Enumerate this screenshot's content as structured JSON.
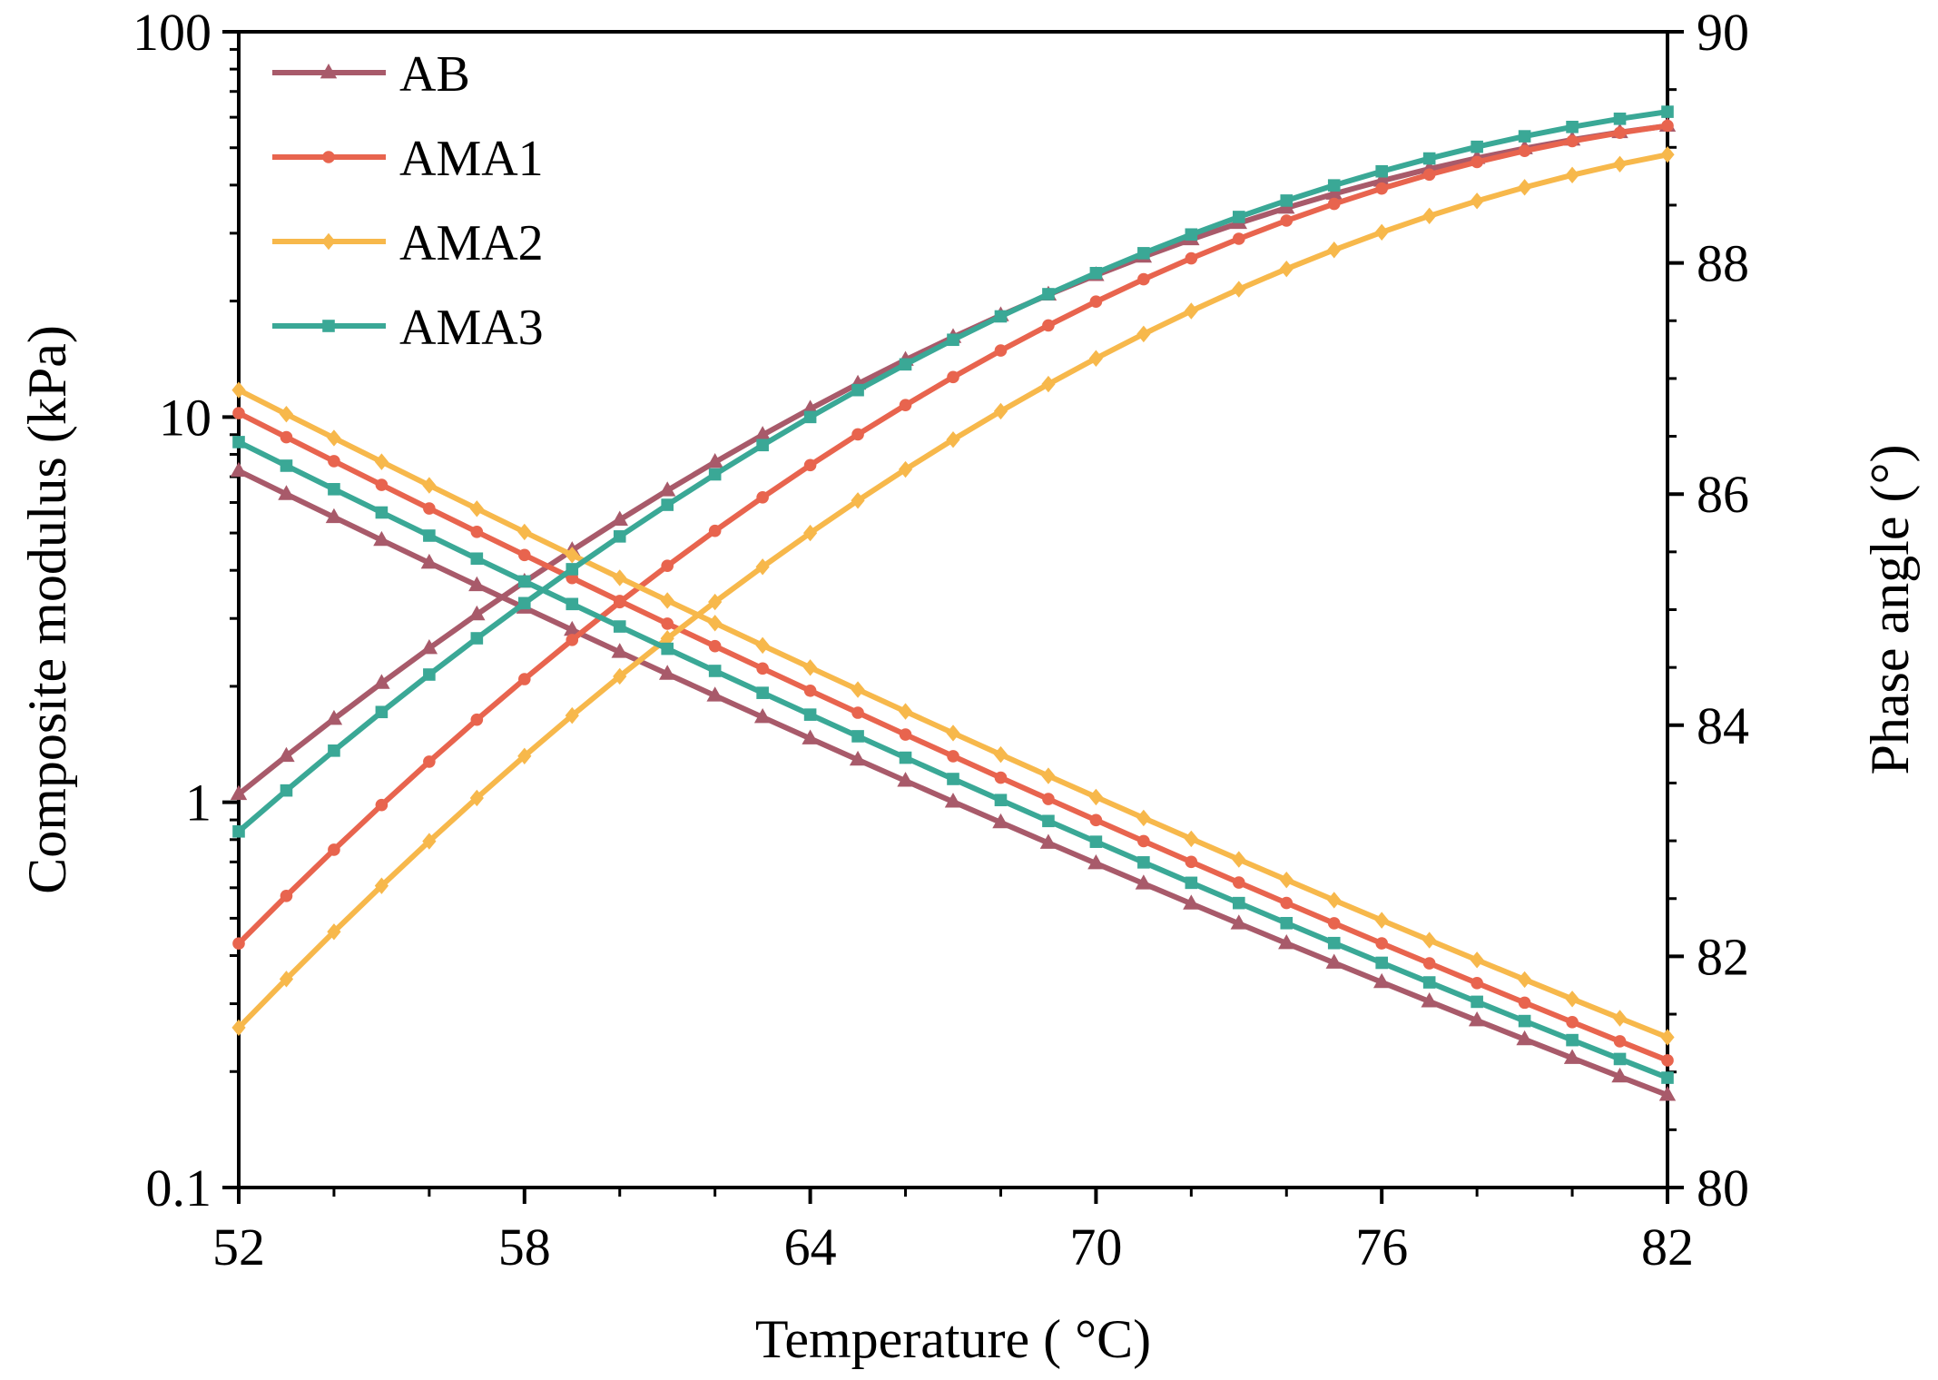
{
  "chart_data": {
    "type": "line",
    "title": "",
    "xlabel": "Temperature ( °C)",
    "ylabel_left": "Composite modulus (kPa)",
    "ylabel_right": "Phase angle (°)",
    "xlim": [
      52,
      82
    ],
    "ylim_left": [
      0.1,
      100
    ],
    "yscale_left": "log",
    "ylim_right": [
      80,
      90
    ],
    "x_ticks": [
      "52",
      "58",
      "64",
      "70",
      "76",
      "82"
    ],
    "y_left_ticks": [
      "0.1",
      "1",
      "10",
      "100"
    ],
    "y_right_ticks": [
      "80",
      "82",
      "84",
      "86",
      "88",
      "90"
    ],
    "legend_position": "top-left",
    "legend": [
      "AB",
      "AMA1",
      "AMA2",
      "AMA3"
    ],
    "series": [
      {
        "name": "AB",
        "color": "#a85a6a",
        "marker": "triangle",
        "modulus_start": 1.05,
        "modulus_end": 57.0,
        "modulus_mid": 10.5,
        "phase_start": 86.2,
        "phase_end": 80.8
      },
      {
        "name": "AMA1",
        "color": "#e8644e",
        "marker": "circle",
        "modulus_start": 0.43,
        "modulus_end": 57.0,
        "modulus_mid": 7.5,
        "phase_start": 86.7,
        "phase_end": 81.1
      },
      {
        "name": "AMA2",
        "color": "#f7b84b",
        "marker": "diamond",
        "modulus_start": 0.26,
        "modulus_end": 48.0,
        "modulus_mid": 5.0,
        "phase_start": 86.9,
        "phase_end": 81.3
      },
      {
        "name": "AMA3",
        "color": "#3aa896",
        "marker": "square",
        "modulus_start": 0.84,
        "modulus_end": 62.0,
        "modulus_mid": 10.0,
        "phase_start": 86.45,
        "phase_end": 80.95
      }
    ]
  }
}
